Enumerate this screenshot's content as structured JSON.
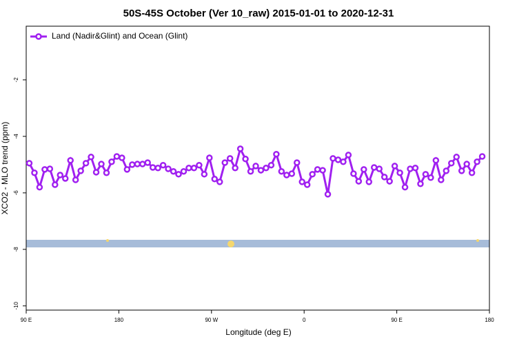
{
  "chart_data": {
    "type": "line",
    "title": "50S-45S October (Ver 10_raw)   2015-01-01 to 2020-12-31",
    "xlabel": "Longitude (deg E)",
    "ylabel": "XCO2 - MLO trend (ppm)",
    "legend": "top-left",
    "xlim": [
      90,
      540
    ],
    "xticks": [
      {
        "value": 90,
        "label": "90 E"
      },
      180,
      {
        "value": 270,
        "label": "90 W"
      },
      {
        "value": 360,
        "label": "0"
      },
      {
        "value": 450,
        "label": "90 E"
      },
      {
        "value": 540,
        "label": "180"
      }
    ],
    "ylim": [
      -10.15,
      -0.1
    ],
    "yticks": [
      -10,
      -8,
      -6,
      -4,
      -2
    ],
    "x": [
      93,
      98,
      103,
      108,
      113,
      118,
      123,
      128,
      133,
      138,
      143,
      148,
      153,
      158,
      163,
      168,
      173,
      178,
      183,
      188,
      193,
      198,
      203,
      208,
      213,
      218,
      223,
      228,
      233,
      238,
      243,
      248,
      253,
      258,
      263,
      268,
      273,
      278,
      283,
      288,
      293,
      298,
      303,
      308,
      313,
      318,
      323,
      328,
      333,
      338,
      343,
      348,
      353,
      358,
      363,
      368,
      373,
      378,
      383,
      388,
      393,
      398,
      403,
      408,
      413,
      418,
      423,
      428,
      433,
      438,
      443,
      448,
      453,
      458,
      463,
      468,
      473,
      478,
      483,
      488,
      493,
      498,
      503,
      508,
      513,
      518,
      523,
      528,
      533
    ],
    "series": [
      {
        "name": "Land (Nadir&Glint) and Ocean (Glint)",
        "color": "#a020f0",
        "values": [
          -4.95,
          -5.29,
          -5.8,
          -5.17,
          -5.15,
          -5.71,
          -5.37,
          -5.49,
          -4.85,
          -5.54,
          -5.22,
          -4.95,
          -4.73,
          -5.27,
          -4.98,
          -5.29,
          -4.9,
          -4.71,
          -4.76,
          -5.17,
          -5.0,
          -4.98,
          -4.98,
          -4.93,
          -5.1,
          -5.12,
          -5.02,
          -5.15,
          -5.24,
          -5.34,
          -5.24,
          -5.12,
          -5.12,
          -5.02,
          -5.34,
          -4.76,
          -5.51,
          -5.61,
          -4.93,
          -4.78,
          -5.12,
          -4.44,
          -4.8,
          -5.24,
          -5.05,
          -5.2,
          -5.12,
          -5.02,
          -4.63,
          -5.24,
          -5.37,
          -5.32,
          -4.93,
          -5.61,
          -5.71,
          -5.34,
          -5.17,
          -5.2,
          -6.05,
          -4.78,
          -4.83,
          -4.9,
          -4.66,
          -5.32,
          -5.59,
          -5.17,
          -5.61,
          -5.1,
          -5.15,
          -5.44,
          -5.59,
          -5.05,
          -5.29,
          -5.8,
          -5.15,
          -5.12,
          -5.68,
          -5.34,
          -5.46,
          -4.85,
          -5.54,
          -5.22,
          -4.95,
          -4.73,
          -5.22,
          -4.98,
          -5.29,
          -4.9,
          -4.71
        ]
      }
    ]
  }
}
